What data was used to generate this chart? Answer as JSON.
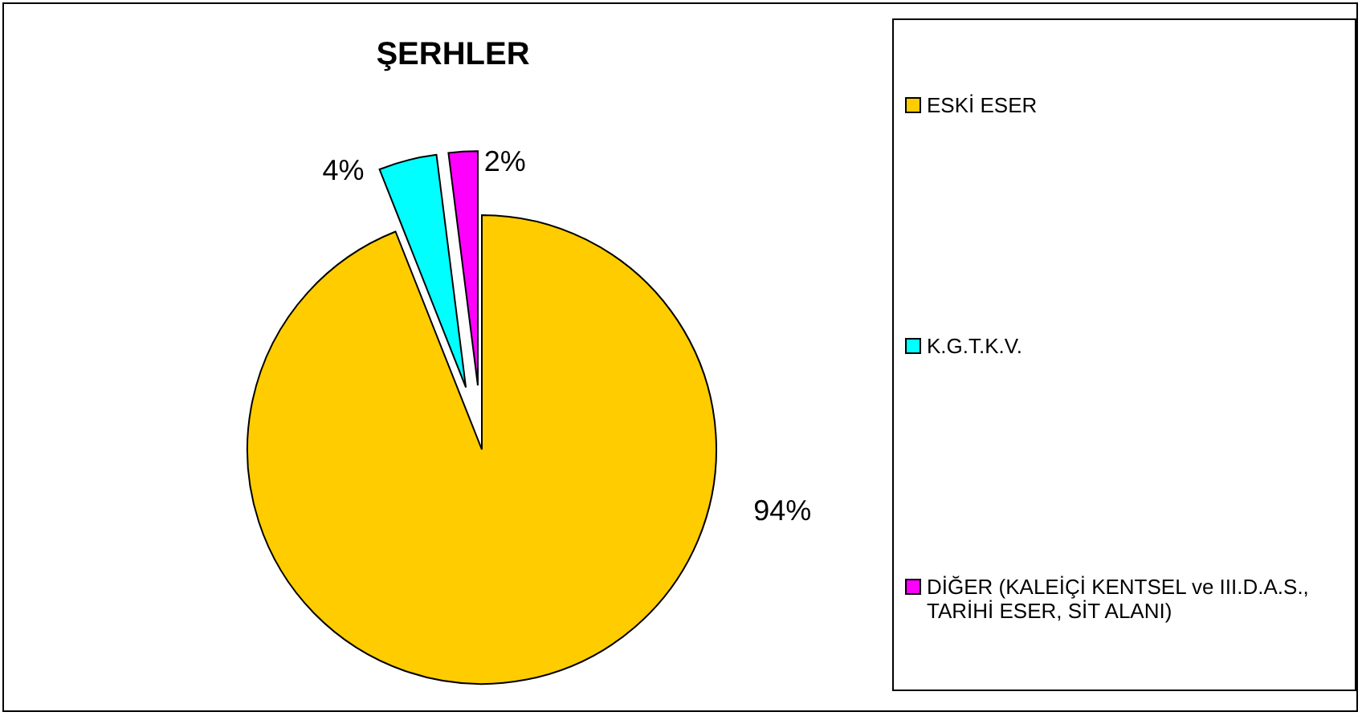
{
  "chart_data": {
    "type": "pie",
    "title": "ŞERHLER",
    "categories": [
      "ESKİ ESER",
      "K.G.T.K.V.",
      "DİĞER (KALEİÇİ KENTSEL ve III.D.A.S., TARİHİ ESER, SİT ALANI)"
    ],
    "values": [
      94,
      4,
      2
    ],
    "colors": [
      "#ffcc00",
      "#00ffff",
      "#ff00ff"
    ],
    "legend": "right",
    "value_labels": [
      "94%",
      "4%",
      "2%"
    ]
  }
}
